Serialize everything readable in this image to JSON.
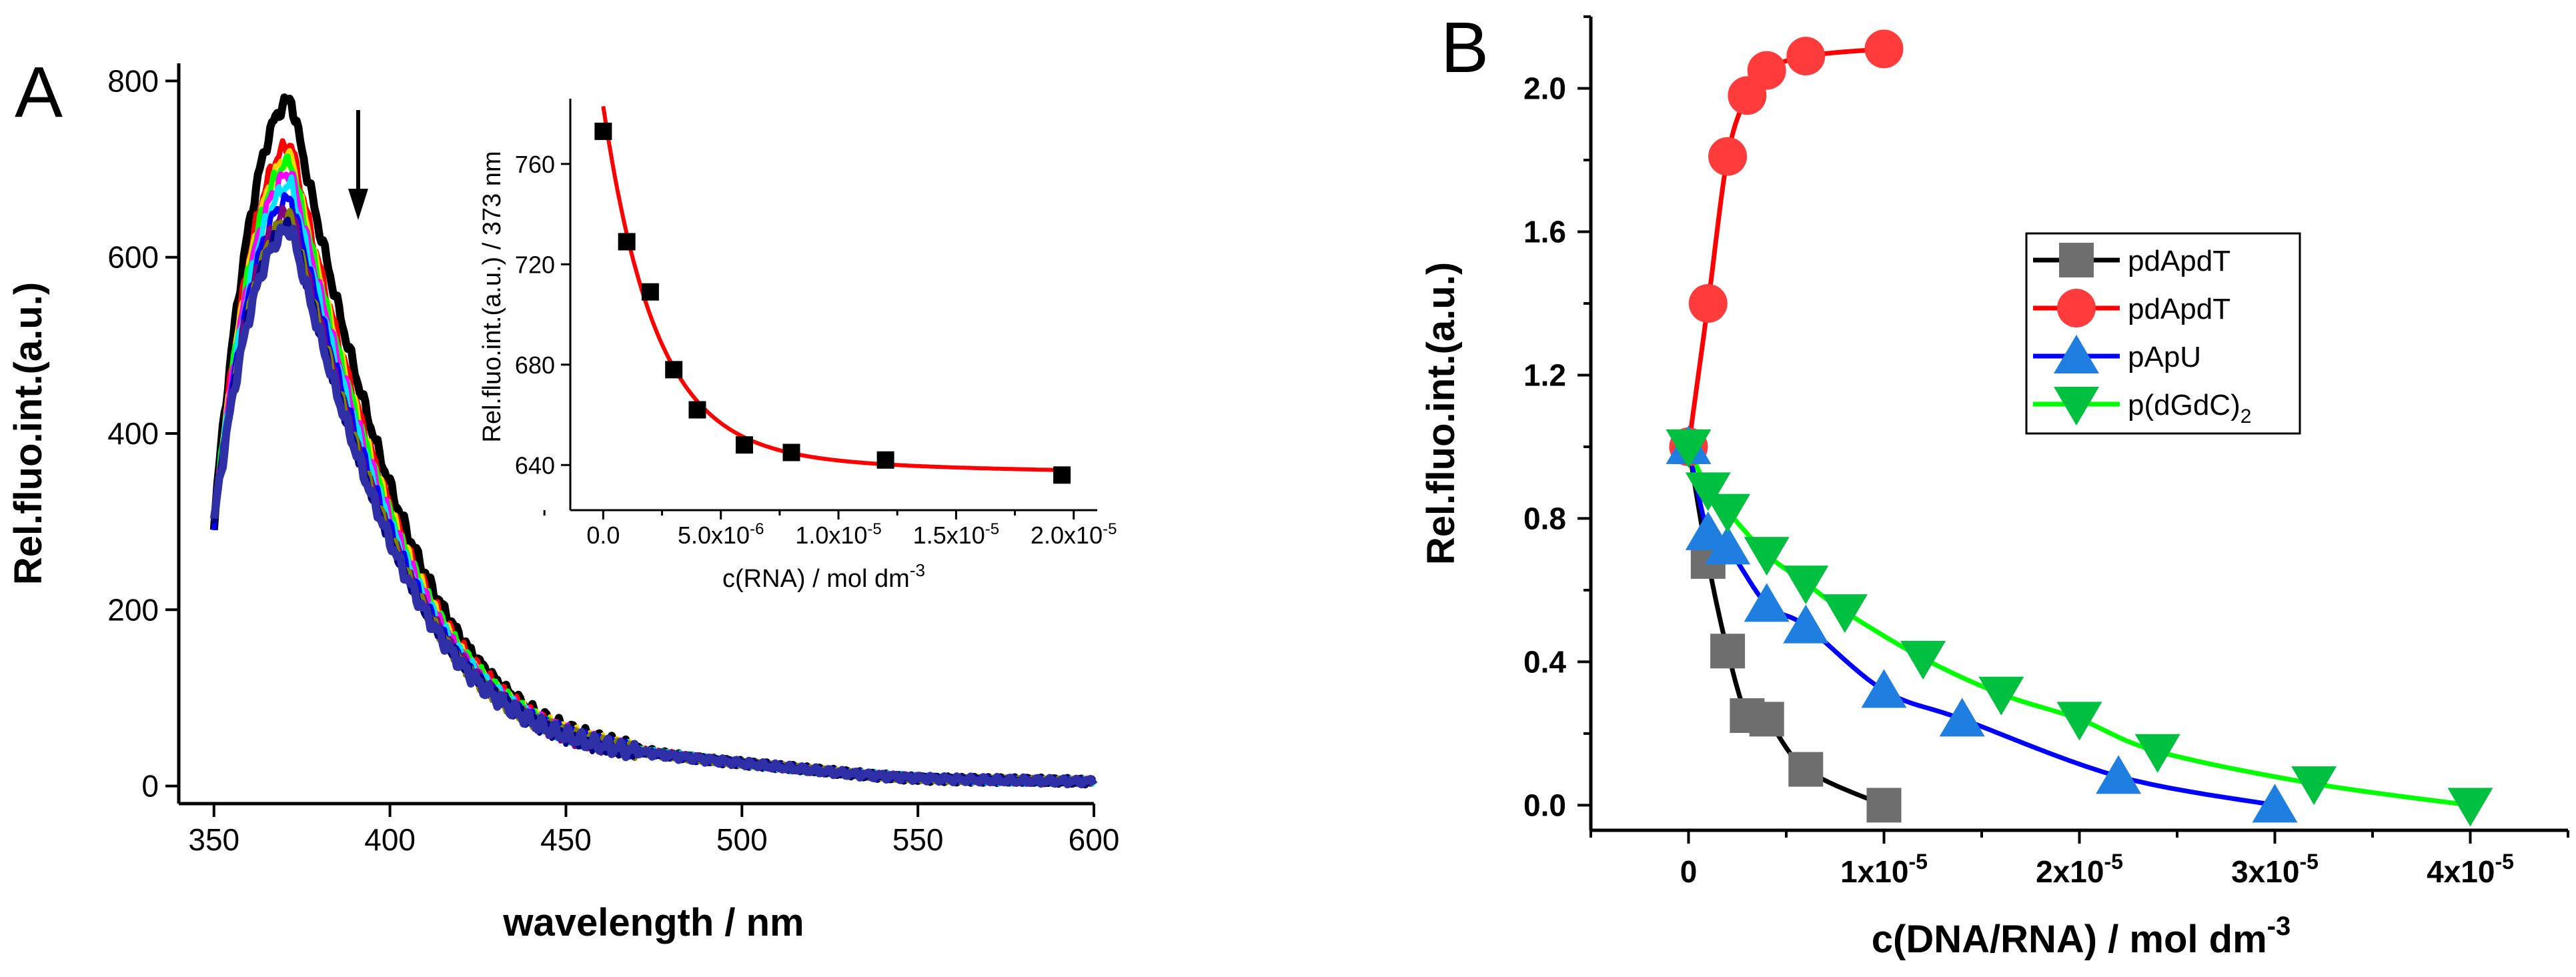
{
  "chart_data": [
    {
      "panel": "A",
      "type": "line",
      "xlabel": "wavelength / nm",
      "ylabel": "Rel.fluo.int.(a.u.)",
      "xlim": [
        340,
        600
      ],
      "ylim": [
        -20,
        820
      ],
      "xticks": [
        350,
        400,
        450,
        500,
        550,
        600
      ],
      "yticks": [
        0,
        200,
        400,
        600,
        800
      ],
      "arrow": "down",
      "series": [
        {
          "name": "spectrum 1",
          "color": "#000000",
          "peak": 778
        },
        {
          "name": "spectrum 2",
          "color": "#ff0000",
          "peak": 728
        },
        {
          "name": "spectrum 3",
          "color": "#ffd400",
          "peak": 714
        },
        {
          "name": "spectrum 4",
          "color": "#00ff00",
          "peak": 708
        },
        {
          "name": "spectrum 5",
          "color": "#ff00ff",
          "peak": 695
        },
        {
          "name": "spectrum 6",
          "color": "#00e5ff",
          "peak": 682
        },
        {
          "name": "spectrum 7",
          "color": "#0000ff",
          "peak": 666
        },
        {
          "name": "spectrum 8",
          "color": "#800080",
          "peak": 652
        },
        {
          "name": "spectrum 9",
          "color": "#808000",
          "peak": 645
        },
        {
          "name": "spectrum 10",
          "color": "#000080",
          "peak": 636
        },
        {
          "name": "spectrum 11",
          "color": "#2f2fa8",
          "peak": 632
        }
      ]
    },
    {
      "panel": "A inset",
      "type": "scatter",
      "xlabel": "c(RNA) / mol dm",
      "xlabel_sup": "-3",
      "ylabel": "Rel.fluo.int.(a.u.) / 373 nm",
      "xlim": [
        -1.4e-06,
        2.1e-05
      ],
      "ylim": [
        622,
        786
      ],
      "xticks": [
        {
          "value": 0,
          "base": "0.0",
          "exp": ""
        },
        {
          "value": 5e-06,
          "base": "5.0x10",
          "exp": "-6"
        },
        {
          "value": 1e-05,
          "base": "1.0x10",
          "exp": "-5"
        },
        {
          "value": 1.5e-05,
          "base": "1.5x10",
          "exp": "-5"
        },
        {
          "value": 2e-05,
          "base": "2.0x10",
          "exp": "-5"
        }
      ],
      "yticks": [
        640,
        680,
        720,
        760
      ],
      "points": {
        "x": [
          0,
          1e-06,
          2e-06,
          3e-06,
          4e-06,
          6e-06,
          8e-06,
          1.2e-05,
          1.95e-05
        ],
        "y": [
          773,
          729,
          709,
          678,
          662,
          648,
          645,
          642,
          636
        ]
      },
      "fit_color": "#ff0000"
    },
    {
      "panel": "B",
      "type": "scatter",
      "xlabel": "c(DNA/RNA) / mol dm",
      "xlabel_sup": "-3",
      "ylabel": "Rel.fluo.int.(a.u.)",
      "xlim": [
        -5e-06,
        4.5e-05
      ],
      "ylim": [
        -0.07,
        2.2
      ],
      "xticks": [
        {
          "value": 0,
          "base": "0",
          "exp": ""
        },
        {
          "value": 1e-05,
          "base": "1x10",
          "exp": "-5"
        },
        {
          "value": 2e-05,
          "base": "2x10",
          "exp": "-5"
        },
        {
          "value": 3e-05,
          "base": "3x10",
          "exp": "-5"
        },
        {
          "value": 4e-05,
          "base": "4x10",
          "exp": "-5"
        }
      ],
      "yticks": [
        {
          "value": 0,
          "label": "0.0"
        },
        {
          "value": 0.4,
          "label": "0.4"
        },
        {
          "value": 0.8,
          "label": "0.8"
        },
        {
          "value": 1.2,
          "label": "1.2"
        },
        {
          "value": 1.6,
          "label": "1.6"
        },
        {
          "value": 2.0,
          "label": "2.0"
        }
      ],
      "legend_position": "center-right",
      "series": [
        {
          "name": "pdApdT",
          "sub": "",
          "marker": "square",
          "marker_color": "#6e6e6e",
          "line_color": "#000000",
          "x": [
            0,
            1e-06,
            2e-06,
            3e-06,
            4e-06,
            6e-06,
            1e-05
          ],
          "y": [
            1.0,
            0.68,
            0.43,
            0.25,
            0.24,
            0.1,
            0.0
          ]
        },
        {
          "name": "pdApdT",
          "sub": "",
          "marker": "circle",
          "marker_color": "#ff3b3b",
          "line_color": "#ff0000",
          "x": [
            0,
            1e-06,
            2e-06,
            3e-06,
            4e-06,
            6e-06,
            1e-05
          ],
          "y": [
            1.0,
            1.4,
            1.81,
            1.98,
            2.05,
            2.09,
            2.11
          ]
        },
        {
          "name": "pApU",
          "sub": "",
          "marker": "triangle-up",
          "marker_color": "#1f7fe0",
          "line_color": "#0000ff",
          "x": [
            0,
            1e-06,
            2e-06,
            4e-06,
            6e-06,
            1e-05,
            1.4e-05,
            2.2e-05,
            3e-05
          ],
          "y": [
            1.0,
            0.76,
            0.72,
            0.56,
            0.5,
            0.32,
            0.24,
            0.08,
            0.0
          ]
        },
        {
          "name": "p(dGdC)",
          "sub": "2",
          "marker": "triangle-down",
          "marker_color": "#00c040",
          "line_color": "#00ff00",
          "x": [
            0,
            1e-06,
            2e-06,
            4e-06,
            6e-06,
            8e-06,
            1.2e-05,
            1.6e-05,
            2e-05,
            2.4e-05,
            3.2e-05,
            4e-05
          ],
          "y": [
            1.0,
            0.88,
            0.82,
            0.7,
            0.62,
            0.54,
            0.41,
            0.31,
            0.24,
            0.15,
            0.06,
            0.0
          ]
        }
      ]
    }
  ]
}
